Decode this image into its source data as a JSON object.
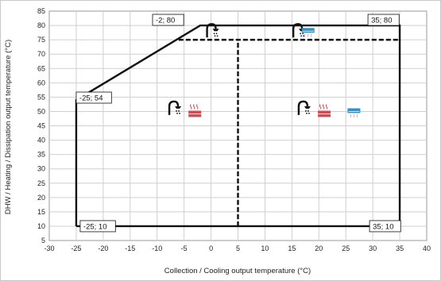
{
  "chart_data": {
    "type": "line",
    "xlabel": "Collection / Cooling output temperature (°C)",
    "ylabel": "DHW / Heating / Dissipation output temperature (°C)",
    "xlim": [
      -30,
      40
    ],
    "ylim": [
      5,
      85
    ],
    "x_ticks": [
      -30,
      -25,
      -20,
      -15,
      -10,
      -5,
      0,
      5,
      10,
      15,
      20,
      25,
      30,
      35,
      40
    ],
    "y_ticks": [
      5,
      10,
      15,
      20,
      25,
      30,
      35,
      40,
      45,
      50,
      55,
      60,
      65,
      70,
      75,
      80,
      85
    ],
    "grid": true,
    "series": [
      {
        "style": "solid",
        "points": [
          [
            -25,
            10
          ],
          [
            -25,
            54
          ],
          [
            -2,
            80
          ],
          [
            35,
            80
          ],
          [
            35,
            10
          ],
          [
            -25,
            10
          ]
        ]
      },
      {
        "style": "dashed",
        "points": [
          [
            5,
            10
          ],
          [
            5,
            75
          ]
        ]
      },
      {
        "style": "dashed",
        "points": [
          [
            -6,
            75
          ],
          [
            35,
            75
          ]
        ]
      }
    ],
    "annotations": [
      {
        "text": "-2; 80",
        "x": -2,
        "y": 80
      },
      {
        "text": "35; 80",
        "x": 35,
        "y": 80
      },
      {
        "text": "-25; 54",
        "x": -25,
        "y": 54
      },
      {
        "text": "-25; 10",
        "x": -25,
        "y": 10
      },
      {
        "text": "35; 10",
        "x": 35,
        "y": 10
      }
    ],
    "icons": [
      {
        "name": "shower-icon",
        "x": 0,
        "y": 78
      },
      {
        "name": "shower-icon",
        "x": 16,
        "y": 78
      },
      {
        "name": "cooling-unit-icon",
        "x": 18,
        "y": 78
      },
      {
        "name": "shower-icon",
        "x": -7,
        "y": 51
      },
      {
        "name": "radiator-icon",
        "x": -3,
        "y": 50
      },
      {
        "name": "shower-icon",
        "x": 17,
        "y": 51
      },
      {
        "name": "radiator-icon",
        "x": 21,
        "y": 50
      },
      {
        "name": "cooling-unit-icon",
        "x": 26.5,
        "y": 50
      }
    ],
    "colors": {
      "outline": "#111111",
      "grid": "#cfcfcf",
      "radiator": "#c8505a",
      "cooling": "#3a8fbf"
    }
  }
}
